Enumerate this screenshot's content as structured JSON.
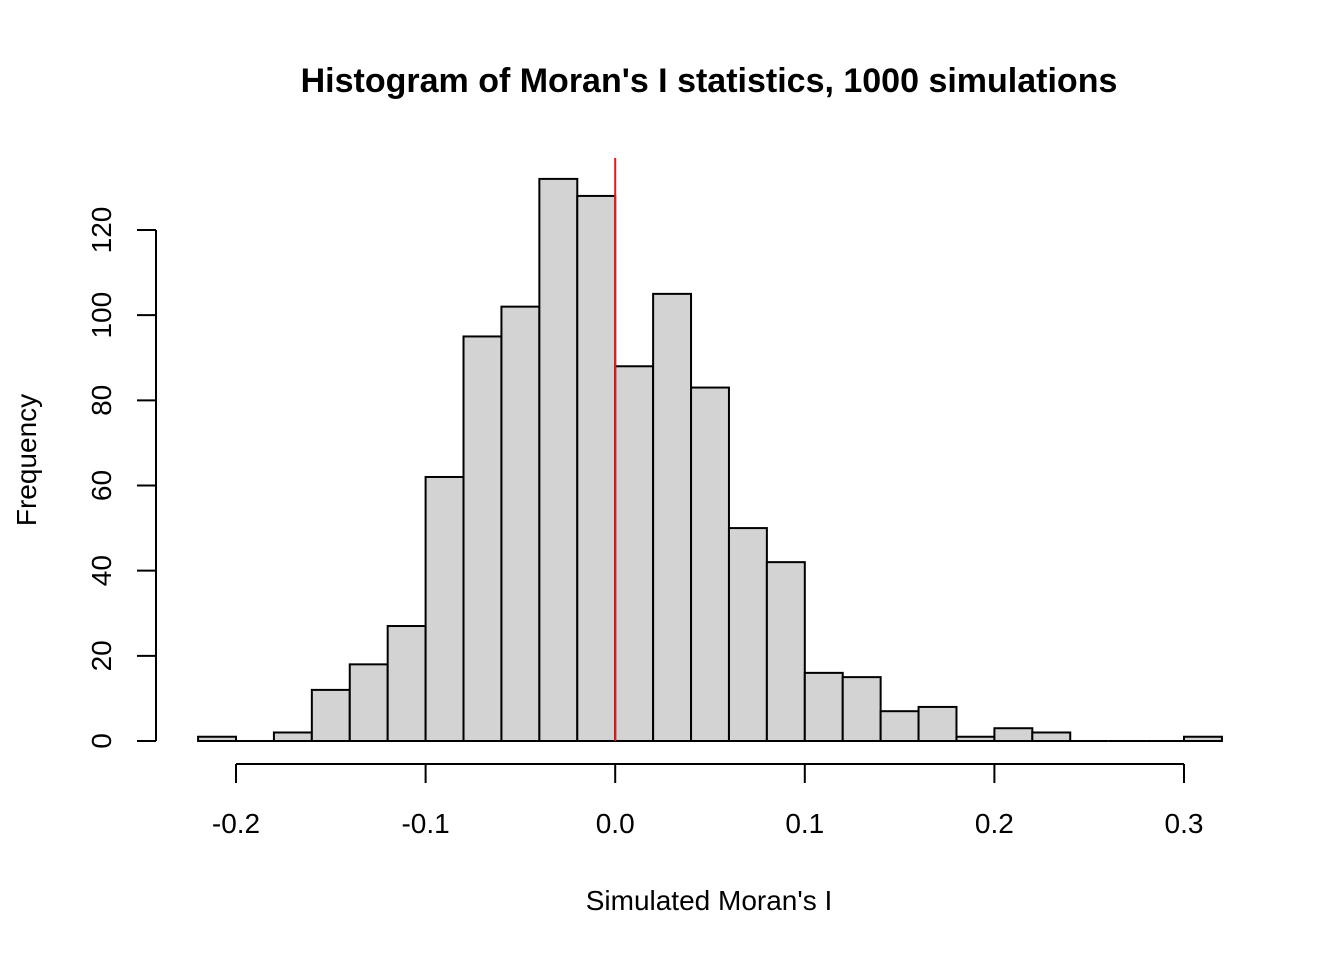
{
  "chart_data": {
    "type": "bar",
    "title": "Histogram of Moran's I statistics, 1000 simulations",
    "xlabel": "Simulated Moran's I",
    "ylabel": "Frequency",
    "bins": {
      "start": -0.22,
      "width": 0.02,
      "counts": [
        1,
        0,
        2,
        12,
        18,
        27,
        62,
        95,
        102,
        132,
        128,
        88,
        105,
        83,
        50,
        42,
        16,
        15,
        7,
        8,
        1,
        3,
        2,
        0,
        0,
        0,
        1
      ]
    },
    "x_ticks": [
      -0.2,
      -0.1,
      0.0,
      0.1,
      0.2,
      0.3
    ],
    "x_tick_labels": [
      "-0.2",
      "-0.1",
      "0.0",
      "0.1",
      "0.2",
      "0.3"
    ],
    "y_ticks": [
      0,
      20,
      40,
      60,
      80,
      100,
      120
    ],
    "y_tick_labels": [
      "0",
      "20",
      "40",
      "60",
      "80",
      "100",
      "120"
    ],
    "xlim": [
      -0.22,
      0.32
    ],
    "ylim": [
      0,
      132
    ],
    "reference_line": {
      "x": 0.0,
      "color": "#e41a1c"
    },
    "bar_fill": "#d3d3d3",
    "grid": false,
    "legend": "none"
  }
}
